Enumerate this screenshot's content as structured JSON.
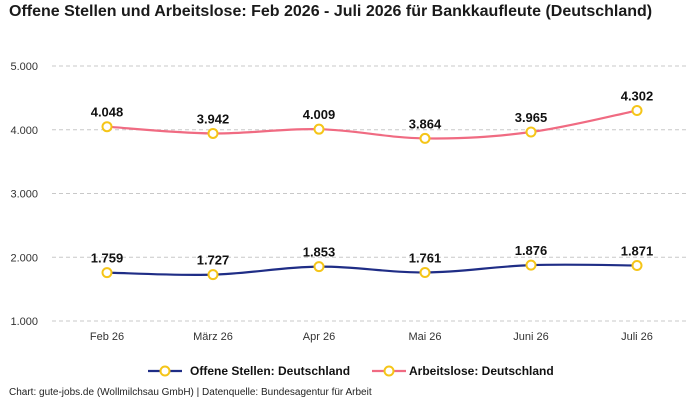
{
  "title": "Offene Stellen und Arbeitslose: Feb 2026 - Juli 2026 für Bankkaufleute (Deutschland)",
  "footer": "Chart: gute-jobs.de (Wollmilchsau GmbH) | Datenquelle: Bundesagentur für Arbeit",
  "chart_data": {
    "type": "line",
    "categories": [
      "Feb 26",
      "März 26",
      "Apr 26",
      "Mai 26",
      "Juni 26",
      "Juli 26"
    ],
    "series": [
      {
        "name": "Offene Stellen: Deutschland",
        "values": [
          1759,
          1727,
          1853,
          1761,
          1876,
          1871
        ],
        "labels": [
          "1.759",
          "1.727",
          "1.853",
          "1.761",
          "1.876",
          "1.871"
        ],
        "color": "#1f2d86"
      },
      {
        "name": "Arbeitslose: Deutschland",
        "values": [
          4048,
          3942,
          4009,
          3864,
          3965,
          4302
        ],
        "labels": [
          "4.048",
          "3.942",
          "4.009",
          "3.864",
          "3.965",
          "4.302"
        ],
        "color": "#f06b82"
      }
    ],
    "marker_color": "#f5c518",
    "yticks": [
      1000,
      2000,
      3000,
      4000,
      5000
    ],
    "ytick_labels": [
      "1.000",
      "2.000",
      "3.000",
      "4.000",
      "5.000"
    ],
    "ylim": [
      1000,
      5000
    ],
    "grid": true,
    "legend_position": "bottom"
  }
}
